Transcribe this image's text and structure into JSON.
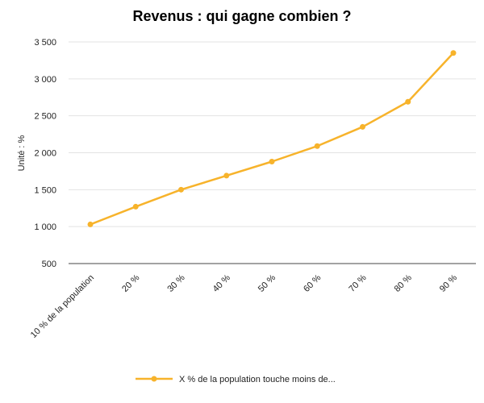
{
  "chart_data": {
    "type": "line",
    "title": "Revenus : qui gagne combien ?",
    "ylabel": "Unité : %",
    "xlabel": "",
    "categories": [
      "10 % de la population",
      "20 %",
      "30 %",
      "40 %",
      "50 %",
      "60 %",
      "70 %",
      "80 %",
      "90 %"
    ],
    "series": [
      {
        "name": "X % de la population touche moins de...",
        "values": [
          1030,
          1270,
          1500,
          1690,
          1880,
          2090,
          2350,
          2690,
          3350
        ],
        "color": "#f7b32b"
      }
    ],
    "ylim": [
      500,
      3500
    ],
    "yticks": [
      500,
      1000,
      1500,
      2000,
      2500,
      3000,
      3500
    ],
    "ytick_labels": [
      "500",
      "1 000",
      "1 500",
      "2 000",
      "2 500",
      "3 000",
      "3 500"
    ],
    "grid": true,
    "legend_position": "bottom"
  }
}
